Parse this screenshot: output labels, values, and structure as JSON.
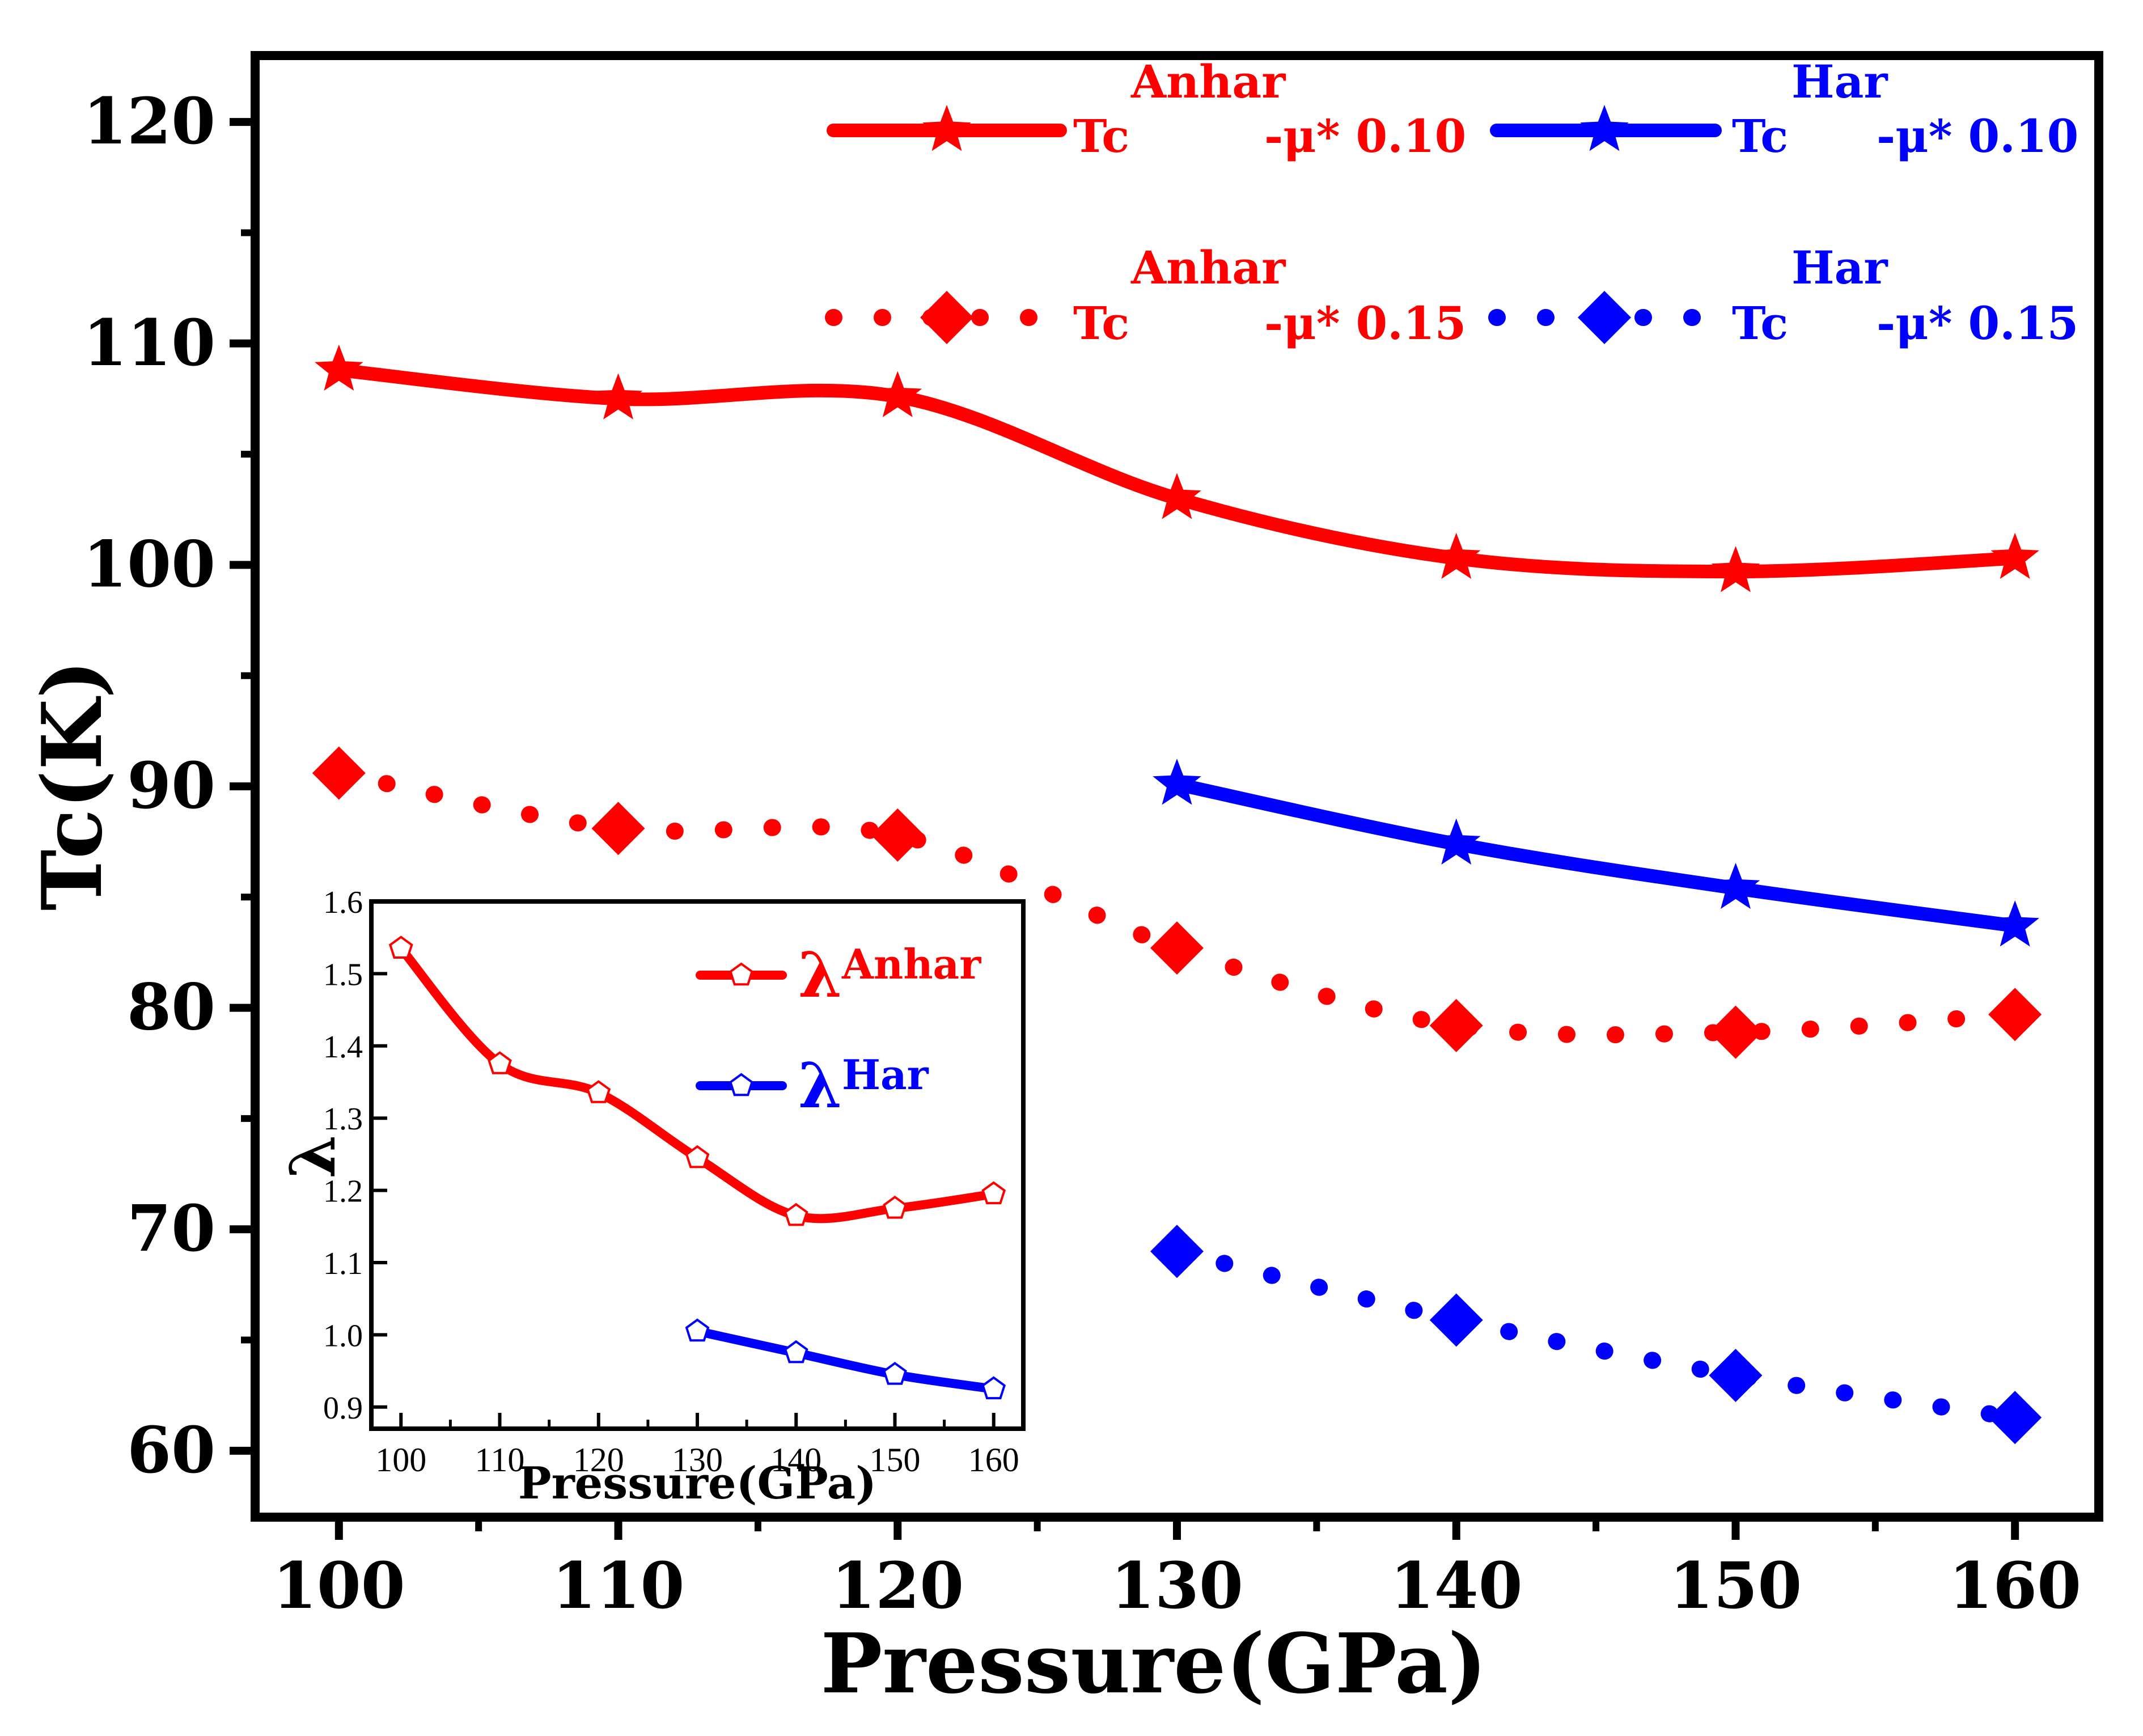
{
  "chart_data": [
    {
      "type": "line",
      "title": "",
      "xlabel": "Pressure(GPa)",
      "ylabel": "Tc(K)",
      "xlim": [
        97,
        163
      ],
      "ylim": [
        57,
        123
      ],
      "xticks": [
        100,
        110,
        120,
        130,
        140,
        150,
        160
      ],
      "yticks": [
        60,
        70,
        80,
        90,
        100,
        110,
        120
      ],
      "legend_position": "top-right",
      "series": [
        {
          "key": "anhar_010",
          "name_main": "Tc",
          "name_sup": "Anhar",
          "name_suffix": "-μ* 0.10",
          "color": "#ff0000",
          "marker": "star",
          "line": "solid",
          "x": [
            100,
            110,
            120,
            130,
            140,
            150,
            160
          ],
          "y": [
            108.8,
            107.5,
            107.6,
            103.0,
            100.3,
            99.7,
            100.3
          ]
        },
        {
          "key": "har_010",
          "name_main": "Tc",
          "name_sup": "Har",
          "name_suffix": "-μ* 0.10",
          "color": "#0000ff",
          "marker": "star",
          "line": "solid",
          "x": [
            130,
            140,
            150,
            160
          ],
          "y": [
            90.1,
            87.4,
            85.4,
            83.7
          ]
        },
        {
          "key": "anhar_015",
          "name_main": "Tc",
          "name_sup": "Anhar",
          "name_suffix": "-μ* 0.15",
          "color": "#ff0000",
          "marker": "diamond",
          "line": "dotted",
          "x": [
            100,
            110,
            120,
            130,
            140,
            150,
            160
          ],
          "y": [
            90.6,
            88.1,
            87.8,
            82.7,
            79.2,
            78.9,
            79.7
          ]
        },
        {
          "key": "har_015",
          "name_main": "Tc",
          "name_sup": "Har",
          "name_suffix": "-μ* 0.15",
          "color": "#0000ff",
          "marker": "diamond",
          "line": "dotted",
          "x": [
            130,
            140,
            150,
            160
          ],
          "y": [
            69.0,
            65.9,
            63.4,
            61.5
          ]
        }
      ]
    },
    {
      "type": "line",
      "title": "",
      "xlabel": "Pressure(GPa)",
      "ylabel": "λ",
      "xlim": [
        97,
        163
      ],
      "ylim": [
        0.87,
        1.6
      ],
      "xticks": [
        100,
        110,
        120,
        130,
        140,
        150,
        160
      ],
      "yticks": [
        "0.9",
        "1.0",
        "1.1",
        "1.2",
        "1.3",
        "1.4",
        "1.5",
        "1.6"
      ],
      "legend_position": "top-right",
      "series": [
        {
          "key": "lambda_anhar",
          "name_main": "λ",
          "name_sup": "Anhar",
          "color": "#ff0000",
          "marker": "pentagon-open",
          "x": [
            100,
            110,
            120,
            130,
            140,
            150,
            160
          ],
          "y": [
            1.535,
            1.375,
            1.335,
            1.245,
            1.165,
            1.175,
            1.195
          ]
        },
        {
          "key": "lambda_har",
          "name_main": "λ",
          "name_sup": "Har",
          "color": "#0000ff",
          "marker": "pentagon-open",
          "x": [
            130,
            140,
            150,
            160
          ],
          "y": [
            1.005,
            0.975,
            0.945,
            0.925
          ]
        }
      ]
    }
  ]
}
